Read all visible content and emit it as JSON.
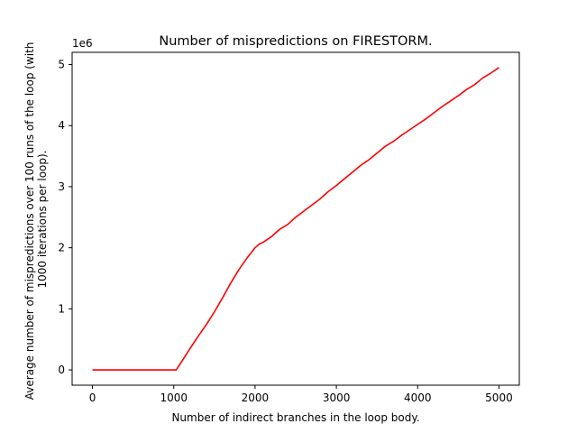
{
  "chart_data": {
    "type": "line",
    "title": "Number of mispredictions on FIRESTORM.",
    "xlabel": "Number of indirect branches in the loop body.",
    "ylabel_lines": [
      "Average number of mispredictions over 100 runs of the loop (with",
      "1000 iterations per loop)."
    ],
    "y_offset_label": "1e6",
    "y_scale": 1000000,
    "xlim": [
      -250,
      5250
    ],
    "ylim": [
      -0.25,
      5.2
    ],
    "x_ticks": [
      0,
      1000,
      2000,
      3000,
      4000,
      5000
    ],
    "x_tick_labels": [
      "0",
      "1000",
      "2000",
      "3000",
      "4000",
      "5000"
    ],
    "y_ticks": [
      0,
      1,
      2,
      3,
      4,
      5
    ],
    "y_tick_labels": [
      "0",
      "1",
      "2",
      "3",
      "4",
      "5"
    ],
    "grid": false,
    "series": [
      {
        "color": "#ff0000",
        "x": [
          0,
          250,
          500,
          750,
          1000,
          1030,
          1100,
          1200,
          1300,
          1400,
          1500,
          1600,
          1700,
          1800,
          1900,
          2000,
          2050,
          2100,
          2200,
          2300,
          2400,
          2500,
          2600,
          2700,
          2800,
          2900,
          3000,
          3100,
          3200,
          3300,
          3400,
          3500,
          3600,
          3700,
          3800,
          3900,
          4000,
          4100,
          4200,
          4300,
          4400,
          4500,
          4600,
          4700,
          4800,
          4900,
          5000
        ],
        "values": [
          0,
          0,
          0,
          0,
          0,
          0,
          0.14,
          0.35,
          0.55,
          0.74,
          0.95,
          1.18,
          1.42,
          1.64,
          1.83,
          2.0,
          2.06,
          2.09,
          2.18,
          2.3,
          2.38,
          2.5,
          2.6,
          2.7,
          2.8,
          2.92,
          3.02,
          3.13,
          3.24,
          3.35,
          3.44,
          3.55,
          3.66,
          3.74,
          3.84,
          3.93,
          4.02,
          4.11,
          4.21,
          4.31,
          4.4,
          4.49,
          4.59,
          4.67,
          4.78,
          4.86,
          4.95
        ]
      }
    ]
  }
}
